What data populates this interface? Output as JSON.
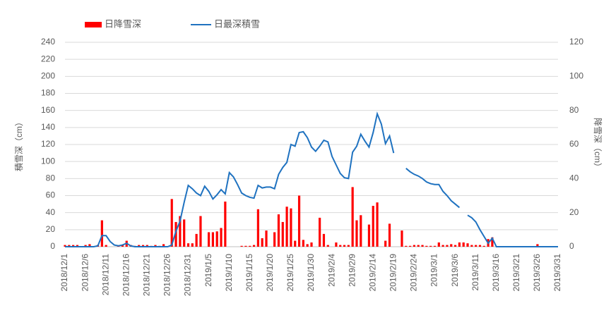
{
  "chart_data": {
    "type": "bar-line",
    "categories": [
      "2018/12/1",
      null,
      null,
      null,
      null,
      "2018/12/6",
      null,
      null,
      null,
      null,
      "2018/12/11",
      null,
      null,
      null,
      null,
      "2018/12/16",
      null,
      null,
      null,
      null,
      "2018/12/21",
      null,
      null,
      null,
      null,
      "2018/12/26",
      null,
      null,
      null,
      null,
      "2018/12/31",
      null,
      null,
      null,
      null,
      "2019/1/5",
      null,
      null,
      null,
      null,
      "2019/1/10",
      null,
      null,
      null,
      null,
      "2019/1/15",
      null,
      null,
      null,
      null,
      "2019/1/20",
      null,
      null,
      null,
      null,
      "2019/1/25",
      null,
      null,
      null,
      null,
      "2019/1/30",
      null,
      null,
      null,
      null,
      "2019/2/4",
      null,
      null,
      null,
      null,
      "2019/2/9",
      null,
      null,
      null,
      null,
      "2019/2/14",
      null,
      null,
      null,
      null,
      "2019/2/19",
      null,
      null,
      null,
      null,
      "2019/2/24",
      null,
      null,
      null,
      null,
      "2019/3/1",
      null,
      null,
      null,
      null,
      "2019/3/6",
      null,
      null,
      null,
      null,
      "2019/3/11",
      null,
      null,
      null,
      null,
      "2019/3/16",
      null,
      null,
      null,
      null,
      "2019/3/21",
      null,
      null,
      null,
      null,
      "2019/3/26",
      null,
      null,
      null,
      null,
      "2019/3/31"
    ],
    "series": [
      {
        "name": "日降雪深",
        "type": "bar",
        "axis": "y2",
        "color": "#ff0000",
        "values": [
          1,
          1,
          1,
          1,
          0,
          1,
          1.5,
          0,
          1,
          15.5,
          1,
          0,
          0,
          0.5,
          1,
          3.5,
          1,
          0.5,
          1,
          1,
          1,
          0.5,
          1,
          0.5,
          1.5,
          0,
          28,
          14.5,
          18,
          16,
          2,
          2,
          7.5,
          18,
          0,
          8.5,
          8.5,
          9,
          11,
          26.5,
          0,
          0,
          0,
          0.5,
          0.5,
          0.5,
          1,
          22,
          5,
          9.5,
          0,
          8.5,
          19,
          14.5,
          23.5,
          22.5,
          3.5,
          30,
          4,
          1.5,
          2.5,
          0,
          17,
          7.5,
          1,
          0,
          2.5,
          1,
          1,
          1,
          35,
          15.5,
          18.5,
          0,
          13,
          24,
          26,
          0,
          3.5,
          13.5,
          0,
          0,
          9.5,
          0.5,
          0.5,
          1,
          1,
          1,
          0.5,
          0.5,
          0.5,
          2.5,
          1,
          1,
          1.5,
          1,
          2.5,
          2.5,
          2,
          1,
          1,
          1,
          0.5,
          4.5,
          5.5,
          0,
          0,
          0,
          0,
          0,
          0,
          0,
          0,
          0,
          0,
          1.5,
          0,
          0,
          0,
          0,
          0
        ]
      },
      {
        "name": "日最深積雪",
        "type": "line",
        "color": "#1f72c0",
        "values": [
          0,
          0,
          0,
          0,
          0,
          0,
          0,
          0,
          1,
          13,
          13,
          6,
          2,
          1,
          2,
          4,
          1,
          0,
          0,
          0,
          0,
          0,
          0,
          0,
          0,
          0,
          2,
          18,
          30,
          52,
          72,
          68,
          63,
          60,
          71,
          65,
          56,
          61,
          67,
          62,
          87,
          82,
          73,
          63,
          60,
          58,
          57,
          72,
          69,
          70,
          70,
          68,
          85,
          93,
          99,
          120,
          118,
          134,
          135,
          128,
          117,
          112,
          118,
          125,
          123,
          106,
          96,
          86,
          81,
          80,
          111,
          118,
          132,
          124,
          117,
          134,
          156,
          144,
          121,
          130,
          110,
          null,
          null,
          92,
          88,
          85,
          83,
          80,
          76,
          74,
          73,
          73,
          65,
          60,
          54,
          50,
          46,
          null,
          37,
          34,
          29,
          20,
          12,
          4,
          10,
          0,
          0,
          0,
          0,
          0,
          0,
          0,
          0,
          0,
          0,
          0,
          0,
          0,
          0,
          0,
          0
        ]
      }
    ],
    "ylabel": "積雪深（cm）",
    "y2label": "降雪深（cm）",
    "ylim": [
      0,
      240
    ],
    "yticks": [
      0,
      20,
      40,
      60,
      80,
      100,
      120,
      140,
      160,
      180,
      200,
      220,
      240
    ],
    "y2lim": [
      0,
      120
    ],
    "y2ticks": [
      0,
      20,
      40,
      60,
      80,
      100,
      120
    ],
    "grid": true,
    "legend": "top-left"
  }
}
